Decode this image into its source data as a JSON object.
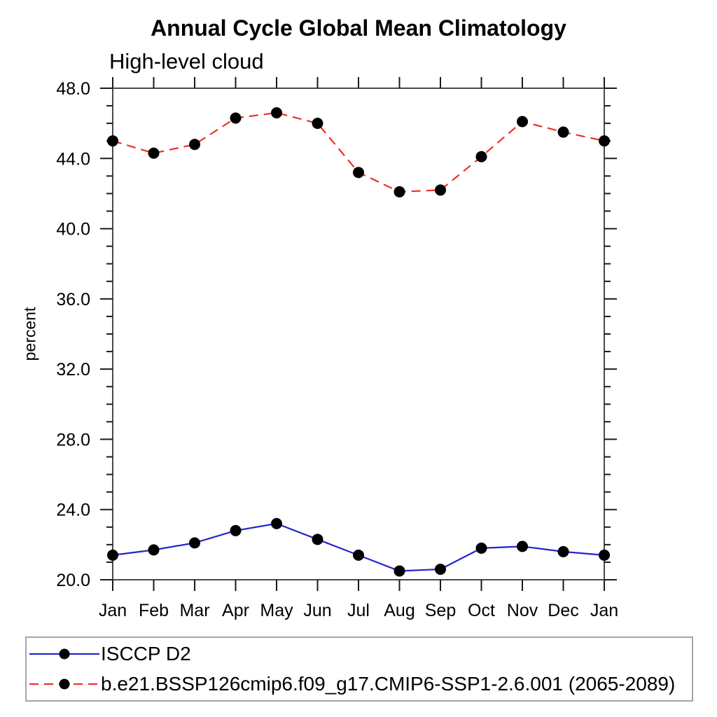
{
  "chart_data": {
    "type": "line",
    "title": "Annual Cycle Global Mean Climatology",
    "subtitle": "High-level cloud",
    "ylabel": "percent",
    "xlabel": "",
    "categories": [
      "Jan",
      "Feb",
      "Mar",
      "Apr",
      "May",
      "Jun",
      "Jul",
      "Aug",
      "Sep",
      "Oct",
      "Nov",
      "Dec",
      "Jan"
    ],
    "ylim": [
      20.0,
      48.0
    ],
    "ytick_major_step": 4.0,
    "ytick_minor_step": 1.0,
    "ytick_labels": [
      "20.0",
      "24.0",
      "28.0",
      "32.0",
      "36.0",
      "40.0",
      "44.0",
      "48.0"
    ],
    "grid": false,
    "legend_position": "bottom",
    "series": [
      {
        "name": "ISCCP D2",
        "color": "#2424cc",
        "line_style": "solid",
        "marker": "circle",
        "marker_color": "#000000",
        "values": [
          21.4,
          21.7,
          22.1,
          22.8,
          23.2,
          22.3,
          21.4,
          20.5,
          20.6,
          21.8,
          21.9,
          21.6,
          21.4
        ]
      },
      {
        "name": "b.e21.BSSP126cmip6.f09_g17.CMIP6-SSP1-2.6.001 (2065-2089)",
        "color": "#ee3128",
        "line_style": "dashed",
        "marker": "circle",
        "marker_color": "#000000",
        "values": [
          45.0,
          44.3,
          44.8,
          46.3,
          46.6,
          46.0,
          43.2,
          42.1,
          42.2,
          44.1,
          46.1,
          45.5,
          45.0
        ]
      }
    ]
  }
}
